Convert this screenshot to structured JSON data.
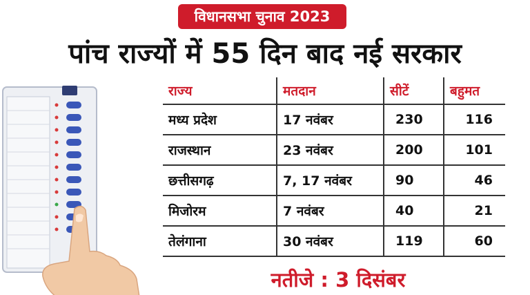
{
  "badge": "विधानसभा चुनाव 2023",
  "headline": "पांच राज्यों में 55 दिन बाद नई सरकार",
  "table": {
    "headers": [
      "राज्य",
      "मतदान",
      "सीटें",
      "बहुमत"
    ],
    "rows": [
      [
        "मध्य प्रदेश",
        "17 नवंबर",
        "230",
        "116"
      ],
      [
        "राजस्थान",
        "23 नवंबर",
        "200",
        "101"
      ],
      [
        "छत्तीसगढ़",
        "7, 17 नवंबर",
        "90",
        "46"
      ],
      [
        "मिजोरम",
        "7 नवंबर",
        "40",
        "21"
      ],
      [
        "तेलंगाना",
        "30 नवंबर",
        "119",
        "60"
      ]
    ]
  },
  "result": "नतीजे : 3 दिसंबर",
  "colors": {
    "accent": "#cf1c2b",
    "text": "#111111"
  }
}
